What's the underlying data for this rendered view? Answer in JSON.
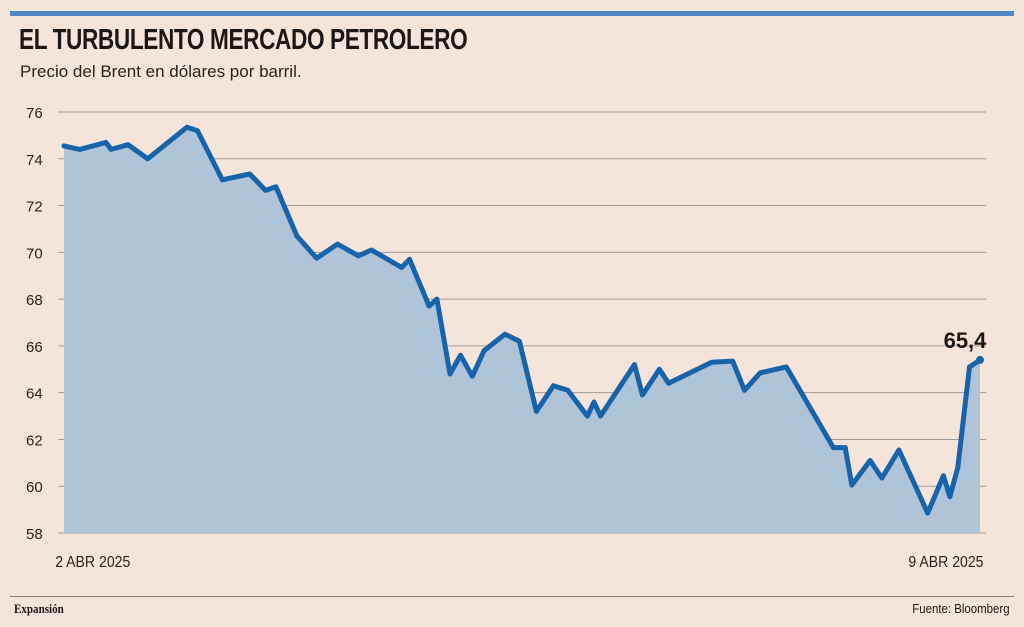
{
  "header": {
    "title": "EL TURBULENTO MERCADO PETROLERO",
    "subtitle": "Precio del Brent en dólares por barril."
  },
  "footer": {
    "brand": "Expansión",
    "source": "Fuente: Bloomberg"
  },
  "colors": {
    "accent": "#4d8ac3",
    "line": "#1764aa",
    "fill": "#afc3d9",
    "background": "#f5e4d9",
    "grid": "#a49a94"
  },
  "chart_data": {
    "type": "area",
    "title": "EL TURBULENTO MERCADO PETROLERO",
    "subtitle": "Precio del Brent en dólares por barril.",
    "xlabel": "",
    "ylabel": "",
    "x_unit": "days since 2 ABR 2025",
    "xlim": [
      0,
      7
    ],
    "ylim": [
      58,
      76
    ],
    "yticks": [
      58,
      60,
      62,
      64,
      66,
      68,
      70,
      72,
      74,
      76
    ],
    "xtick_labels": [
      {
        "x": 0,
        "label": "2 ABR 2025"
      },
      {
        "x": 7,
        "label": "9 ABR 2025"
      }
    ],
    "grid": true,
    "last_value_label": "65,4",
    "series": [
      {
        "name": "Brent",
        "points": [
          [
            0,
            74.55
          ],
          [
            0.12,
            74.4
          ],
          [
            0.32,
            74.7
          ],
          [
            0.36,
            74.4
          ],
          [
            0.49,
            74.6
          ],
          [
            0.64,
            74.0
          ],
          [
            0.94,
            75.35
          ],
          [
            1.02,
            75.2
          ],
          [
            1.21,
            73.1
          ],
          [
            1.42,
            73.35
          ],
          [
            1.54,
            72.65
          ],
          [
            1.62,
            72.8
          ],
          [
            1.78,
            70.7
          ],
          [
            1.93,
            69.75
          ],
          [
            2.09,
            70.35
          ],
          [
            2.25,
            69.85
          ],
          [
            2.35,
            70.1
          ],
          [
            2.58,
            69.35
          ],
          [
            2.64,
            69.7
          ],
          [
            2.79,
            67.7
          ],
          [
            2.85,
            68.0
          ],
          [
            2.95,
            64.8
          ],
          [
            3.03,
            65.6
          ],
          [
            3.12,
            64.7
          ],
          [
            3.21,
            65.8
          ],
          [
            3.37,
            66.5
          ],
          [
            3.48,
            66.2
          ],
          [
            3.61,
            63.2
          ],
          [
            3.74,
            64.3
          ],
          [
            3.85,
            64.1
          ],
          [
            4.0,
            63.0
          ],
          [
            4.05,
            63.6
          ],
          [
            4.1,
            63.0
          ],
          [
            4.36,
            65.2
          ],
          [
            4.42,
            63.9
          ],
          [
            4.55,
            65.0
          ],
          [
            4.62,
            64.4
          ],
          [
            4.95,
            65.3
          ],
          [
            5.11,
            65.35
          ],
          [
            5.2,
            64.1
          ],
          [
            5.32,
            64.85
          ],
          [
            5.52,
            65.1
          ],
          [
            5.88,
            61.65
          ],
          [
            5.97,
            61.65
          ],
          [
            6.02,
            60.05
          ],
          [
            6.16,
            61.1
          ],
          [
            6.25,
            60.35
          ],
          [
            6.38,
            61.55
          ],
          [
            6.6,
            58.85
          ],
          [
            6.72,
            60.45
          ],
          [
            6.77,
            59.55
          ],
          [
            6.83,
            60.8
          ],
          [
            6.92,
            65.1
          ],
          [
            7.0,
            65.4
          ]
        ]
      }
    ]
  }
}
